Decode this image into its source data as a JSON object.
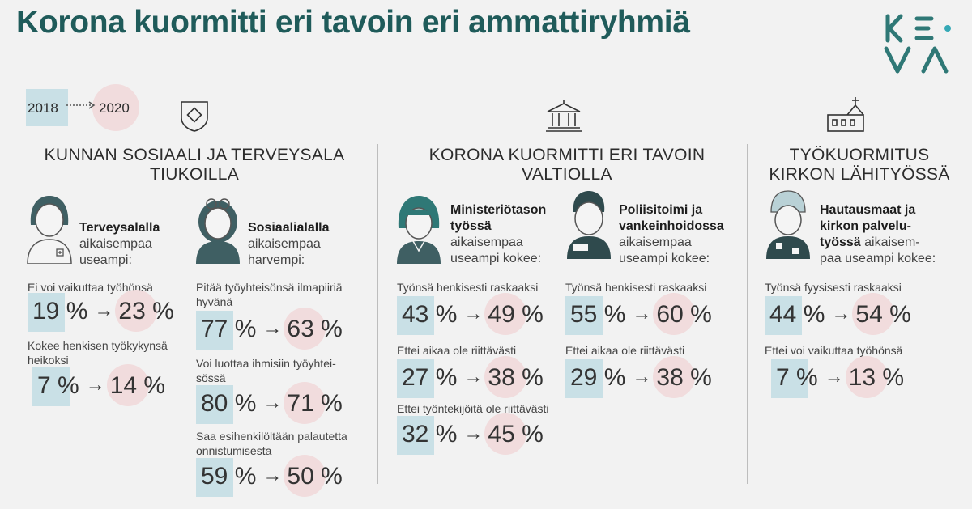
{
  "title": "Korona kuormitti eri tavoin eri ammattiryhmiä",
  "logo": {
    "top": "KE",
    "bottom": "VA"
  },
  "legend": {
    "from": "2018",
    "to": "2020"
  },
  "sections": [
    {
      "heading_line1": "KUNNAN SOSIAALI JA TERVEYSALA",
      "heading_line2": "TIUKOILLA",
      "icon": "shield-icon",
      "groups": [
        {
          "bold": "Terveysalalla",
          "rest1": "aikaisempaa",
          "rest2": "useampi:",
          "stats": [
            {
              "label": [
                "Ei voi vaikuttaa työhönsä"
              ],
              "from": "19 %",
              "to": "23 %"
            },
            {
              "label": [
                "Kokee henkisen työkykynsä",
                "heikoksi"
              ],
              "from": "7 %",
              "to": "14 %"
            }
          ]
        },
        {
          "bold": "Sosiaalialalla",
          "rest1": "aikaisempaa",
          "rest2": "harvempi:",
          "stats": [
            {
              "label": [
                "Pitää työyhteisönsä ilmapiiriä",
                "hyvänä"
              ],
              "from": "77 %",
              "to": "63 %"
            },
            {
              "label": [
                "Voi luottaa ihmisiin työyhtei-",
                "sössä"
              ],
              "from": "80 %",
              "to": "71 %"
            },
            {
              "label": [
                "Saa esihenkilöltään palautetta",
                "onnistumisesta"
              ],
              "from": "59 %",
              "to": "50 %"
            }
          ]
        }
      ]
    },
    {
      "heading_line1": "KORONA KUORMITTI ERI TAVOIN",
      "heading_line2": "VALTIOLLA",
      "icon": "government-building-icon",
      "groups": [
        {
          "bold1": "Ministeriötason",
          "bold2": "työssä",
          "rest1": "aikaisempaa",
          "rest2": "useampi kokee:",
          "stats": [
            {
              "label": [
                "Työnsä henkisesti raskaaksi"
              ],
              "from": "43 %",
              "to": "49 %"
            },
            {
              "label": [
                "Ettei aikaa ole riittävästi"
              ],
              "from": "27 %",
              "to": "38 %"
            },
            {
              "label": [
                "Ettei työntekijöitä ole riittävästi"
              ],
              "from": "32 %",
              "to": "45 %"
            }
          ]
        },
        {
          "bold1": "Poliisitoimi ja",
          "bold2": "vankeinhoidossa",
          "rest1": "aikaisempaa",
          "rest2": "useampi kokee:",
          "stats": [
            {
              "label": [
                "Työnsä henkisesti raskaaksi"
              ],
              "from": "55 %",
              "to": "60 %"
            },
            {
              "label": [
                "Ettei aikaa ole riittävästi"
              ],
              "from": "29 %",
              "to": "38 %"
            }
          ]
        }
      ]
    },
    {
      "heading_line1": "TYÖKUORMITUS",
      "heading_line2": "KIRKON LÄHITYÖSSÄ",
      "icon": "church-icon",
      "groups": [
        {
          "bold1": "Hautausmaat ja",
          "bold2": "kirkon palvelu-",
          "bold3": "työssä",
          "rest3": " aikaisem-",
          "rest4": "paa useampi kokee:",
          "stats": [
            {
              "label": [
                "Työnsä fyysisesti raskaaksi"
              ],
              "from": "44 %",
              "to": "54 %"
            },
            {
              "label": [
                "Ettei voi vaikuttaa työhönsä"
              ],
              "from": "7 %",
              "to": "13 %"
            }
          ]
        }
      ]
    }
  ],
  "colors": {
    "title": "#1f5b5a",
    "teal": "#2f7876",
    "box": "#c9e0e6",
    "circle": "#f1dcdd"
  }
}
